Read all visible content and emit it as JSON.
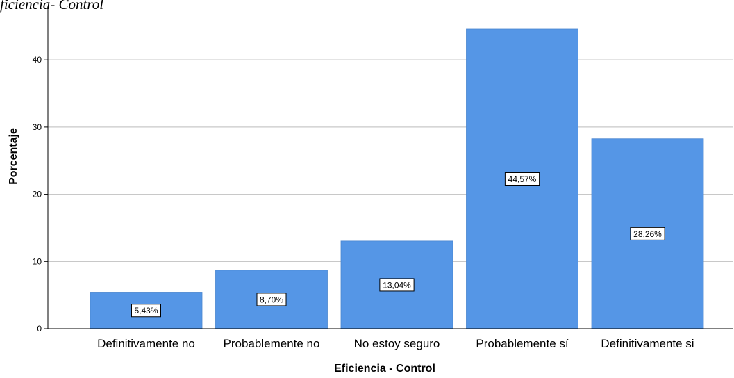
{
  "caption": "ficiencia- Control",
  "chart_data": {
    "type": "bar",
    "categories": [
      "Definitivamente no",
      "Probablemente no",
      "No estoy seguro",
      "Probablemente sí",
      "Definitivamente si"
    ],
    "values": [
      5.43,
      8.7,
      13.04,
      44.57,
      28.26
    ],
    "data_labels": [
      "5,43%",
      "8,70%",
      "13,04%",
      "44,57%",
      "28,26%"
    ],
    "xlabel": "Eficiencia - Control",
    "ylabel": "Porcentaje",
    "ylim": [
      0,
      45
    ],
    "yticks": [
      0,
      10,
      20,
      30,
      40
    ],
    "grid": true,
    "bar_color": "#5596e6",
    "label_position": "center"
  }
}
